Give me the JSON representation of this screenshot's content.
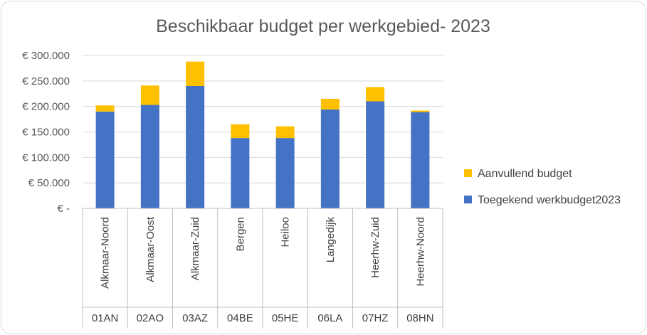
{
  "chart_data": {
    "type": "bar",
    "stacked": true,
    "title": "Beschikbaar budget per werkgebied- 2023",
    "categories": [
      "Alkmaar-Noord",
      "Alkmaar-Oost",
      "Alkmaar-Zuid",
      "Bergen",
      "Heiloo",
      "Langedijk",
      "Heerhw-Zuid",
      "Heerhw-Noord"
    ],
    "category_codes": [
      "01AN",
      "02AO",
      "03AZ",
      "04BE",
      "05HE",
      "06LA",
      "07HZ",
      "08HN"
    ],
    "series": [
      {
        "name": "Toegekend werkbudget2023",
        "color": "#4472C4",
        "values": [
          190000,
          203000,
          240000,
          138000,
          138000,
          194000,
          210000,
          189000
        ]
      },
      {
        "name": "Aanvullend budget",
        "color": "#FFC000",
        "values": [
          12000,
          38000,
          48000,
          27000,
          23000,
          21000,
          28000,
          3000
        ]
      }
    ],
    "ylim": [
      0,
      300000
    ],
    "yticks": [
      0,
      50000,
      100000,
      150000,
      200000,
      250000,
      300000
    ],
    "ytick_labels": [
      "€ -",
      "€ 50.000",
      "€ 100.000",
      "€ 150.000",
      "€ 200.000",
      "€ 250.000",
      "€ 300.000"
    ],
    "grid": true,
    "legend_position": "right",
    "legend_order": [
      "Aanvullend budget",
      "Toegekend werkbudget2023"
    ]
  }
}
